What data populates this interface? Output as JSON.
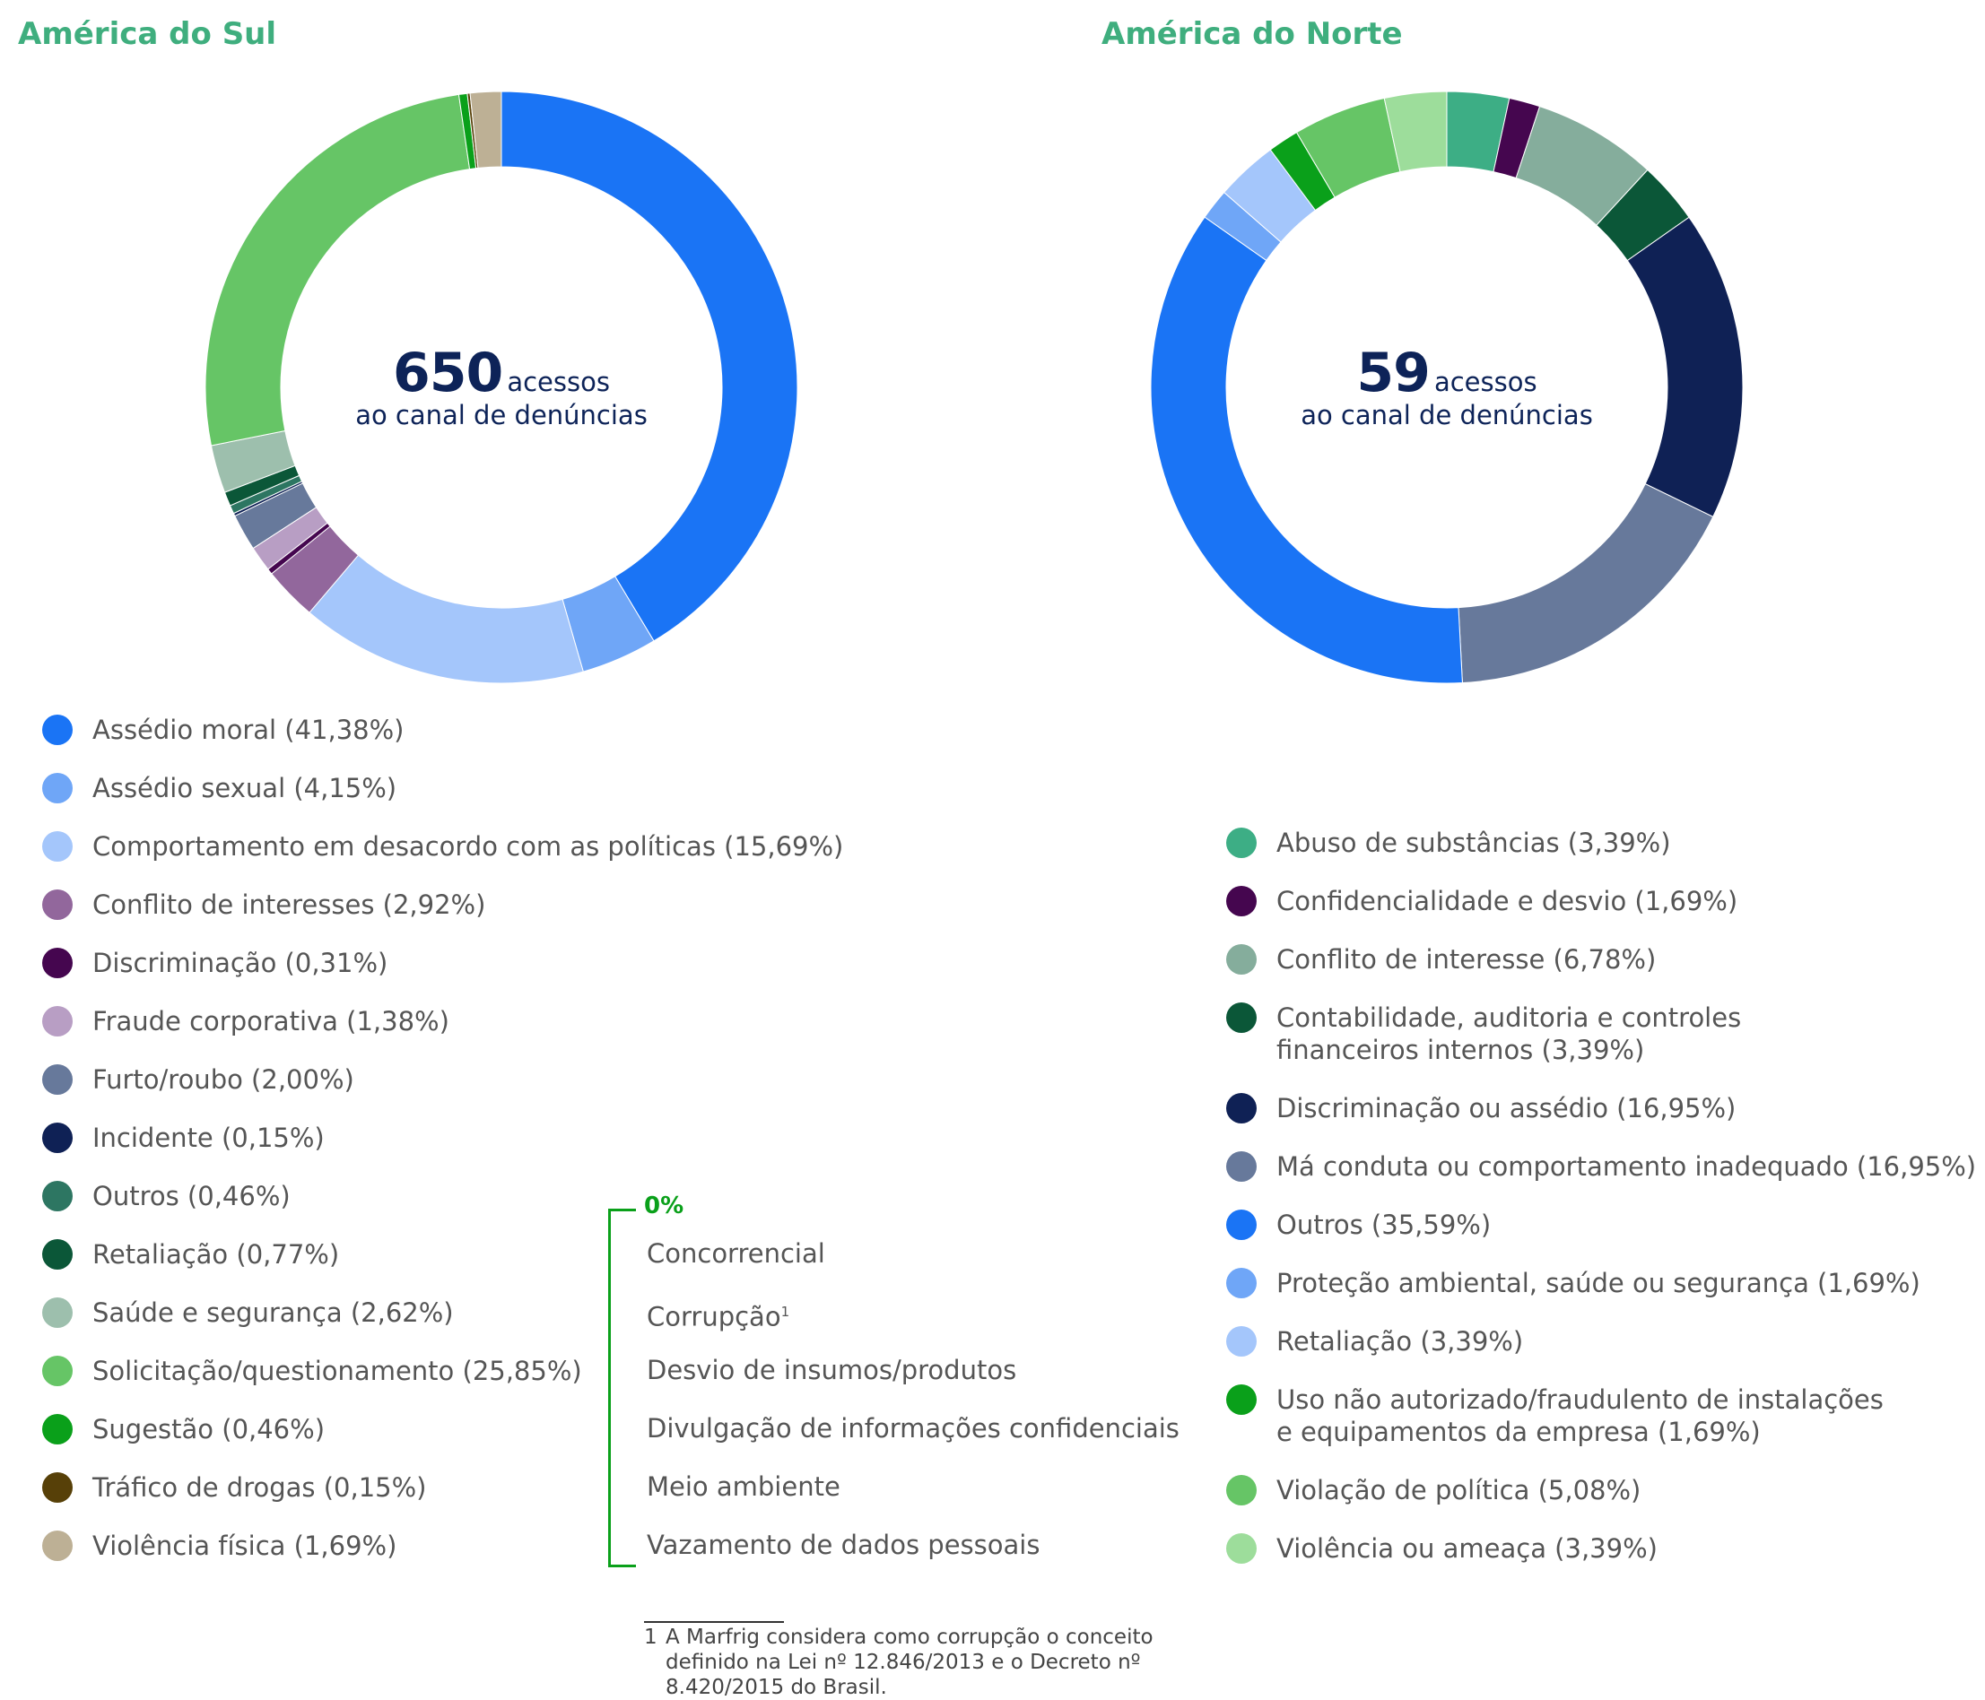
{
  "chart_data": [
    {
      "type": "donut",
      "title": "América do Sul",
      "center": {
        "value": "650",
        "word": "acessos",
        "subtitle": "ao canal de denúncias"
      },
      "slices": [
        {
          "label": "Assédio moral",
          "pct_label": "41,38%",
          "value": 41.38,
          "color": "#1a74f5"
        },
        {
          "label": "Assédio sexual",
          "pct_label": "4,15%",
          "value": 4.15,
          "color": "#6fa6f7"
        },
        {
          "label": "Comportamento em desacordo com as políticas",
          "pct_label": "15,69%",
          "value": 15.69,
          "color": "#a4c6fb"
        },
        {
          "label": "Conflito de interesses",
          "pct_label": "2,92%",
          "value": 2.92,
          "color": "#92679c"
        },
        {
          "label": "Discriminação",
          "pct_label": "0,31%",
          "value": 0.31,
          "color": "#45064f"
        },
        {
          "label": "Fraude corporativa",
          "pct_label": "1,38%",
          "value": 1.38,
          "color": "#b89ec4"
        },
        {
          "label": "Furto/roubo",
          "pct_label": "2,00%",
          "value": 2.0,
          "color": "#67799b"
        },
        {
          "label": "Incidente",
          "pct_label": "0,15%",
          "value": 0.15,
          "color": "#0f2155"
        },
        {
          "label": "Outros",
          "pct_label": "0,46%",
          "value": 0.46,
          "color": "#2d7662"
        },
        {
          "label": "Retaliação",
          "pct_label": "0,77%",
          "value": 0.77,
          "color": "#0b5738"
        },
        {
          "label": "Saúde e segurança",
          "pct_label": "2,62%",
          "value": 2.62,
          "color": "#9dbfad"
        },
        {
          "label": "Solicitação/questionamento",
          "pct_label": "25,85%",
          "value": 25.85,
          "color": "#66c566"
        },
        {
          "label": "Sugestão",
          "pct_label": "0,46%",
          "value": 0.46,
          "color": "#0aa01a"
        },
        {
          "label": "Tráfico de drogas",
          "pct_label": "0,15%",
          "value": 0.15,
          "color": "#574008"
        },
        {
          "label": "Violência física",
          "pct_label": "1,69%",
          "value": 1.69,
          "color": "#bdb095"
        }
      ],
      "zero_categories": {
        "title": "0%",
        "items": [
          {
            "text": "Concorrencial",
            "sup": ""
          },
          {
            "text": "Corrupção",
            "sup": "1"
          },
          {
            "text": "Desvio de insumos/produtos",
            "sup": ""
          },
          {
            "text": "Divulgação de informações confidenciais",
            "sup": ""
          },
          {
            "text": "Meio ambiente",
            "sup": ""
          },
          {
            "text": "Vazamento de dados pessoais",
            "sup": ""
          }
        ]
      }
    },
    {
      "type": "donut",
      "title": "América do Norte",
      "center": {
        "value": "59",
        "word": "acessos",
        "subtitle": "ao canal de denúncias"
      },
      "slices": [
        {
          "label": "Abuso de substâncias",
          "pct_label": "3,39%",
          "value": 3.39,
          "color": "#3dae85"
        },
        {
          "label": "Confidencialidade e desvio",
          "pct_label": "1,69%",
          "value": 1.69,
          "color": "#45064f"
        },
        {
          "label": "Conflito de interesse",
          "pct_label": "6,78%",
          "value": 6.78,
          "color": "#85ad9c"
        },
        {
          "label": "Contabilidade, auditoria e controles financeiros internos",
          "lines": [
            "Contabilidade, auditoria e controles",
            "financeiros internos (3,39%)"
          ],
          "pct_label": "3,39%",
          "value": 3.39,
          "color": "#0b5738"
        },
        {
          "label": "Discriminação ou assédio",
          "pct_label": "16,95%",
          "value": 16.95,
          "color": "#0f2155"
        },
        {
          "label": "Má conduta ou comportamento inadequado",
          "pct_label": "16,95%",
          "value": 16.95,
          "color": "#67799b"
        },
        {
          "label": "Outros",
          "pct_label": "35,59%",
          "value": 35.59,
          "color": "#1a74f5"
        },
        {
          "label": "Proteção ambiental, saúde ou segurança",
          "pct_label": "1,69%",
          "value": 1.69,
          "color": "#6fa6f7"
        },
        {
          "label": "Retaliação",
          "pct_label": "3,39%",
          "value": 3.39,
          "color": "#a4c6fb"
        },
        {
          "label": "Uso não autorizado/fraudulento de instalações e equipamentos da empresa",
          "lines": [
            "Uso não autorizado/fraudulento de instalações",
            "e equipamentos da empresa (1,69%)"
          ],
          "pct_label": "1,69%",
          "value": 1.69,
          "color": "#0aa01a"
        },
        {
          "label": "Violação de política",
          "pct_label": "5,08%",
          "value": 5.08,
          "color": "#66c566"
        },
        {
          "label": "Violência ou ameaça",
          "pct_label": "3,39%",
          "value": 3.39,
          "color": "#9ddd9b"
        }
      ]
    }
  ],
  "footnote": {
    "number": "1",
    "text": "A Marfrig considera como corrupção o conceito definido na Lei nº 12.846/2013 e o Decreto nº 8.420/2015 do Brasil."
  }
}
